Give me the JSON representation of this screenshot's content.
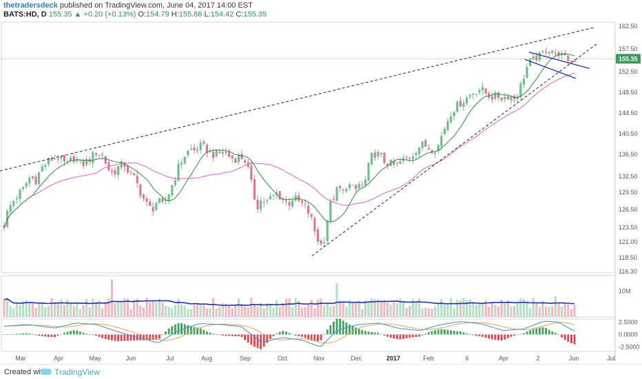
{
  "header": {
    "author": "thetradersdeck",
    "published": "published on TradingView.com, June 04, 2017 14:00 EST",
    "symbol": "BATS:HD, D",
    "last": "155.35",
    "change_arrow": "▲",
    "change": "+0.20 (+0.13%)",
    "open_label": "O:",
    "open": "154.79",
    "high_label": "H:",
    "high": "155.86",
    "low_label": "L:",
    "low": "154.42",
    "close_label": "C:",
    "close": "155.35"
  },
  "footer": {
    "created_with": "Created with",
    "brand": "TradingView"
  },
  "colors": {
    "up": "#6fbf8a",
    "down": "#d9798f",
    "ma_fast": "#2e8b3e",
    "ma_slow": "#e65fc6",
    "vol_ma": "#1a2fb5",
    "price_tag": "#3e9a5f",
    "channel": "#1a2fb5",
    "macd_line": "#3b8fd8",
    "signal_line": "#f5a04a"
  },
  "chart_data": [
    {
      "type": "candlestick",
      "title": "BATS:HD, D",
      "x_ticks": [
        "Mar",
        "Apr",
        "May",
        "Jun",
        "Jul",
        "Aug",
        "Sep",
        "Oct",
        "Nov",
        "Dec",
        "2017",
        "Feb",
        "6",
        "Apr",
        "2",
        "Jun",
        "Jul"
      ],
      "y_ticks": [
        "162.50",
        "157.50",
        "155.35",
        "152.50",
        "148.50",
        "144.50",
        "140.50",
        "136.50",
        "132.50",
        "129.50",
        "126.50",
        "123.50",
        "121.00",
        "118.50",
        "116.30"
      ],
      "ylim": [
        116.3,
        162.5
      ],
      "last_price": 155.35,
      "close_path": [
        [
          0,
          120.2
        ],
        [
          5,
          123.5
        ],
        [
          12,
          126.5
        ],
        [
          22,
          128.5
        ],
        [
          33,
          130
        ],
        [
          44,
          132.5
        ],
        [
          52,
          131.8
        ],
        [
          60,
          134
        ],
        [
          72,
          135.5
        ],
        [
          84,
          136
        ],
        [
          90,
          135.2
        ],
        [
          98,
          134.5
        ],
        [
          106,
          136
        ],
        [
          118,
          134.6
        ],
        [
          128,
          135.4
        ],
        [
          140,
          137
        ],
        [
          150,
          136.2
        ],
        [
          156,
          134
        ],
        [
          164,
          133
        ],
        [
          172,
          134.2
        ],
        [
          180,
          134.8
        ],
        [
          188,
          133
        ],
        [
          196,
          132
        ],
        [
          204,
          129.5
        ],
        [
          212,
          127.5
        ],
        [
          220,
          126.4
        ],
        [
          228,
          128
        ],
        [
          236,
          127.2
        ],
        [
          244,
          129
        ],
        [
          252,
          131.5
        ],
        [
          260,
          134.5
        ],
        [
          268,
          136.3
        ],
        [
          276,
          137.5
        ],
        [
          284,
          137.2
        ],
        [
          292,
          138.2
        ],
        [
          300,
          137.4
        ],
        [
          308,
          136.5
        ],
        [
          316,
          136.5
        ],
        [
          324,
          137.1
        ],
        [
          332,
          136.2
        ],
        [
          340,
          135.6
        ],
        [
          348,
          136.2
        ],
        [
          356,
          135.4
        ],
        [
          362,
          133
        ],
        [
          368,
          129
        ],
        [
          374,
          127.2
        ],
        [
          380,
          128.2
        ],
        [
          386,
          127.6
        ],
        [
          394,
          128.6
        ],
        [
          402,
          129.3
        ],
        [
          410,
          128.4
        ],
        [
          418,
          127.4
        ],
        [
          426,
          128.6
        ],
        [
          434,
          127.8
        ],
        [
          442,
          127.1
        ],
        [
          450,
          125.6
        ],
        [
          456,
          123.2
        ],
        [
          462,
          121.2
        ],
        [
          468,
          120.2
        ],
        [
          472,
          122.5
        ],
        [
          476,
          125.5
        ],
        [
          480,
          127.5
        ],
        [
          486,
          129.2
        ],
        [
          492,
          130.3
        ],
        [
          498,
          129.4
        ],
        [
          504,
          131.2
        ],
        [
          510,
          130.4
        ],
        [
          516,
          129.8
        ],
        [
          522,
          131.2
        ],
        [
          528,
          130.3
        ],
        [
          532,
          132.6
        ],
        [
          536,
          134.8
        ],
        [
          540,
          136.3
        ],
        [
          546,
          136.8
        ],
        [
          552,
          136.1
        ],
        [
          558,
          135.2
        ],
        [
          566,
          134.8
        ],
        [
          574,
          134.4
        ],
        [
          582,
          135.2
        ],
        [
          590,
          135.8
        ],
        [
          598,
          136.4
        ],
        [
          606,
          137.8
        ],
        [
          614,
          138.4
        ],
        [
          622,
          137.8
        ],
        [
          630,
          137.4
        ],
        [
          636,
          138.2
        ],
        [
          642,
          140.5
        ],
        [
          648,
          142.6
        ],
        [
          654,
          144.4
        ],
        [
          660,
          145.5
        ],
        [
          666,
          146.2
        ],
        [
          672,
          146.8
        ],
        [
          678,
          147.5
        ],
        [
          684,
          148.2
        ],
        [
          690,
          148.8
        ],
        [
          698,
          149.2
        ],
        [
          706,
          148.2
        ],
        [
          714,
          147.6
        ],
        [
          722,
          147.8
        ],
        [
          730,
          147.4
        ],
        [
          738,
          147.9
        ],
        [
          746,
          147.3
        ],
        [
          752,
          148.4
        ],
        [
          758,
          150.6
        ],
        [
          764,
          153.2
        ],
        [
          770,
          154.8
        ],
        [
          776,
          155.4
        ],
        [
          782,
          155.8
        ],
        [
          788,
          156.4
        ],
        [
          794,
          157.6
        ],
        [
          800,
          157.1
        ],
        [
          806,
          156.2
        ],
        [
          812,
          156.6
        ],
        [
          818,
          155.6
        ],
        [
          824,
          155.2
        ],
        [
          830,
          154.7
        ],
        [
          836,
          155.35
        ]
      ],
      "moving_averages": [
        {
          "name": "fast",
          "period": 10
        },
        {
          "name": "slow",
          "period": 30
        }
      ],
      "annotations": [
        {
          "name": "upper-trendline",
          "points": [
            [
              0,
              133.5
            ],
            [
              862,
              162.2
            ]
          ]
        },
        {
          "name": "lower-trendline",
          "points": [
            [
              453,
              118.8
            ],
            [
              868,
              158.8
            ]
          ]
        },
        {
          "name": "channel-top",
          "points": [
            [
              768,
              156.8
            ],
            [
              856,
              153.2
            ]
          ]
        },
        {
          "name": "channel-bottom",
          "points": [
            [
              762,
              155.2
            ],
            [
              836,
              151.2
            ]
          ]
        }
      ]
    },
    {
      "type": "bar",
      "title": "Volume",
      "y_ticks": [
        "10M"
      ],
      "ylim": [
        0,
        16
      ],
      "volume_ma_level": 5.5,
      "spikes": [
        [
          164,
          14.5
        ],
        [
          490,
          13
        ],
        [
          806,
          8
        ],
        [
          640,
          7
        ],
        [
          232,
          7
        ]
      ]
    },
    {
      "type": "histogram",
      "title": "MACD",
      "y_ticks": [
        "2.5000",
        "0.0000",
        "-2.5000"
      ],
      "ylim": [
        -3.4,
        3.1
      ],
      "macd_path": [
        [
          0,
          1.6
        ],
        [
          40,
          2.0
        ],
        [
          80,
          1.3
        ],
        [
          110,
          2.3
        ],
        [
          140,
          2.0
        ],
        [
          170,
          0.6
        ],
        [
          200,
          -0.6
        ],
        [
          230,
          -1.7
        ],
        [
          260,
          0.9
        ],
        [
          290,
          2.2
        ],
        [
          320,
          2.0
        ],
        [
          350,
          1.6
        ],
        [
          380,
          -1.6
        ],
        [
          410,
          -0.6
        ],
        [
          440,
          -1.2
        ],
        [
          465,
          -2.5
        ],
        [
          490,
          0.9
        ],
        [
          520,
          2.0
        ],
        [
          550,
          2.3
        ],
        [
          580,
          1.2
        ],
        [
          610,
          0.8
        ],
        [
          640,
          2.0
        ],
        [
          670,
          2.6
        ],
        [
          700,
          2.1
        ],
        [
          730,
          0.8
        ],
        [
          760,
          1.1
        ],
        [
          790,
          2.7
        ],
        [
          810,
          2.5
        ],
        [
          836,
          0.5
        ]
      ]
    }
  ]
}
